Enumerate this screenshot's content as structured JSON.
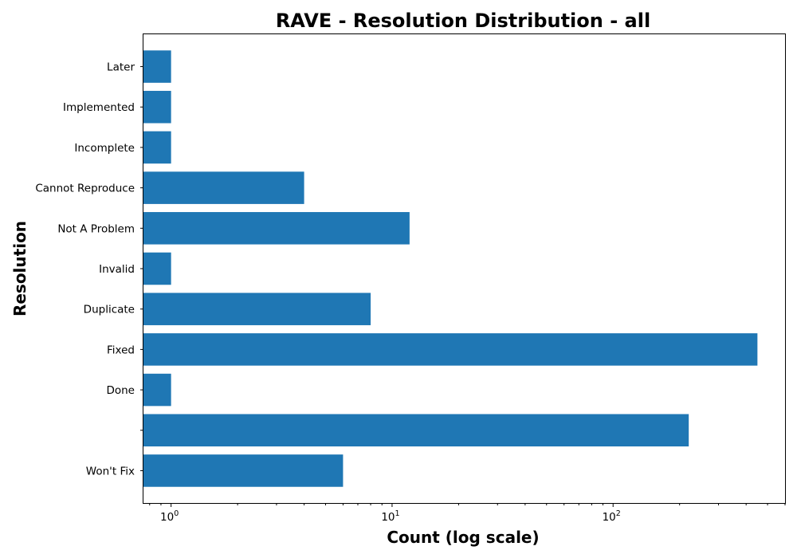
{
  "chart_data": {
    "type": "bar",
    "orientation": "horizontal",
    "title": "RAVE - Resolution Distribution - all",
    "xlabel": "Count (log scale)",
    "ylabel": "Resolution",
    "xscale": "log",
    "xlim": [
      0.75,
      600
    ],
    "categories": [
      "Won't Fix",
      "",
      "Done",
      "Fixed",
      "Duplicate",
      "Invalid",
      "Not A Problem",
      "Cannot Reproduce",
      "Incomplete",
      "Implemented",
      "Later"
    ],
    "values": [
      6,
      220,
      1,
      450,
      8,
      1,
      12,
      4,
      1,
      1,
      1
    ],
    "x_major_ticks": [
      {
        "value": 1,
        "base": "10",
        "exp": "0"
      },
      {
        "value": 10,
        "base": "10",
        "exp": "1"
      },
      {
        "value": 100,
        "base": "10",
        "exp": "2"
      }
    ],
    "colors": {
      "bar": "#1f77b4"
    },
    "grid": false,
    "legend": "none"
  }
}
